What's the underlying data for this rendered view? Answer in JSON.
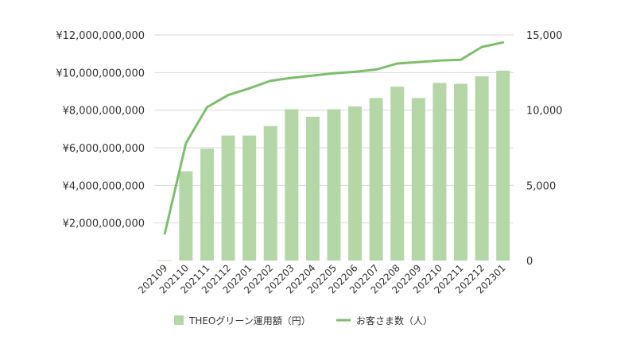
{
  "chart_data": {
    "type": "bar+line",
    "categories": [
      "202109",
      "202110",
      "202111",
      "202112",
      "202201",
      "202202",
      "202203",
      "202204",
      "202205",
      "202206",
      "202207",
      "202208",
      "202209",
      "202210",
      "202211",
      "202212",
      "202301"
    ],
    "series": [
      {
        "name": "THEOグリーン運用額（円）",
        "type": "bar",
        "axis": "left",
        "values": [
          20000000,
          4750000000,
          5950000000,
          6650000000,
          6650000000,
          7150000000,
          8050000000,
          7650000000,
          8050000000,
          8200000000,
          8650000000,
          9250000000,
          8650000000,
          9450000000,
          9400000000,
          9800000000,
          10100000000
        ]
      },
      {
        "name": "お客さま数（人）",
        "type": "line",
        "axis": "right",
        "values": [
          1800,
          7800,
          10200,
          11000,
          11450,
          11950,
          12150,
          12300,
          12450,
          12550,
          12700,
          13100,
          13200,
          13300,
          13350,
          14200,
          14500
        ]
      }
    ],
    "y_left": {
      "ylim": [
        0,
        12000000000
      ],
      "ticks": [
        2000000000,
        4000000000,
        6000000000,
        8000000000,
        10000000000,
        12000000000
      ],
      "tick_labels": [
        "¥2,000,000,000",
        "¥4,000,000,000",
        "¥6,000,000,000",
        "¥8,000,000,000",
        "¥10,000,000,000",
        "¥12,000,000,000"
      ]
    },
    "y_right": {
      "ylim": [
        0,
        15000
      ],
      "ticks": [
        0,
        5000,
        10000,
        15000
      ],
      "tick_labels": [
        "0",
        "5,000",
        "10,000",
        "15,000"
      ]
    },
    "grid": true,
    "legend_position": "bottom",
    "colors": {
      "bar": "#b5d7a8",
      "line": "#7cbf6a",
      "grid": "#d9d9d9",
      "text": "#333333"
    }
  }
}
